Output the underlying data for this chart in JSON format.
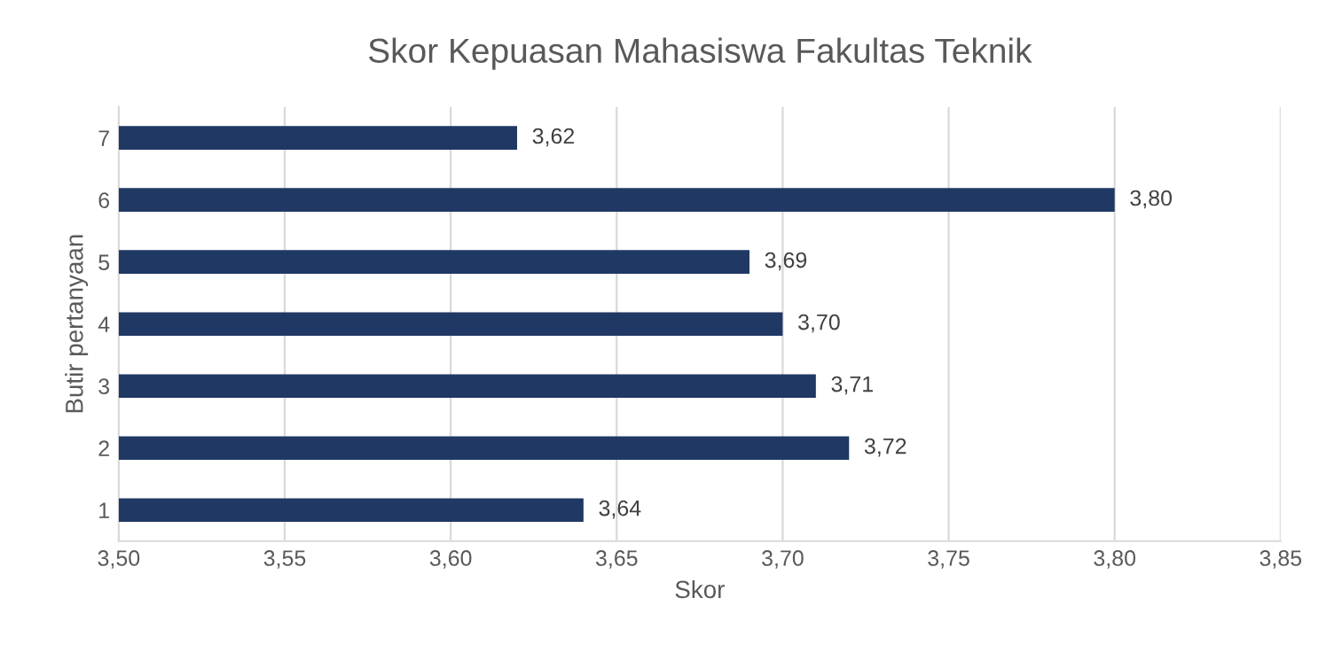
{
  "chart_data": {
    "type": "bar",
    "orientation": "horizontal",
    "title": "Skor Kepuasan Mahasiswa Fakultas Teknik",
    "xlabel": "Skor",
    "ylabel": "Butir pertanyaan",
    "categories": [
      "7",
      "6",
      "5",
      "4",
      "3",
      "2",
      "1"
    ],
    "series": [
      {
        "color": "#203864",
        "values": [
          3.62,
          3.8,
          3.69,
          3.7,
          3.71,
          3.72,
          3.64
        ]
      }
    ],
    "value_labels": [
      "3,62",
      "3,80",
      "3,69",
      "3,70",
      "3,71",
      "3,72",
      "3,64"
    ],
    "xlim": [
      3.5,
      3.85
    ],
    "xticks": [
      {
        "value": 3.5,
        "label": "3,50"
      },
      {
        "value": 3.55,
        "label": "3,55"
      },
      {
        "value": 3.6,
        "label": "3,60"
      },
      {
        "value": 3.65,
        "label": "3,65"
      },
      {
        "value": 3.7,
        "label": "3,70"
      },
      {
        "value": 3.75,
        "label": "3,75"
      },
      {
        "value": 3.8,
        "label": "3,80"
      },
      {
        "value": 3.85,
        "label": "3,85"
      }
    ],
    "grid": "x",
    "legend": false
  }
}
